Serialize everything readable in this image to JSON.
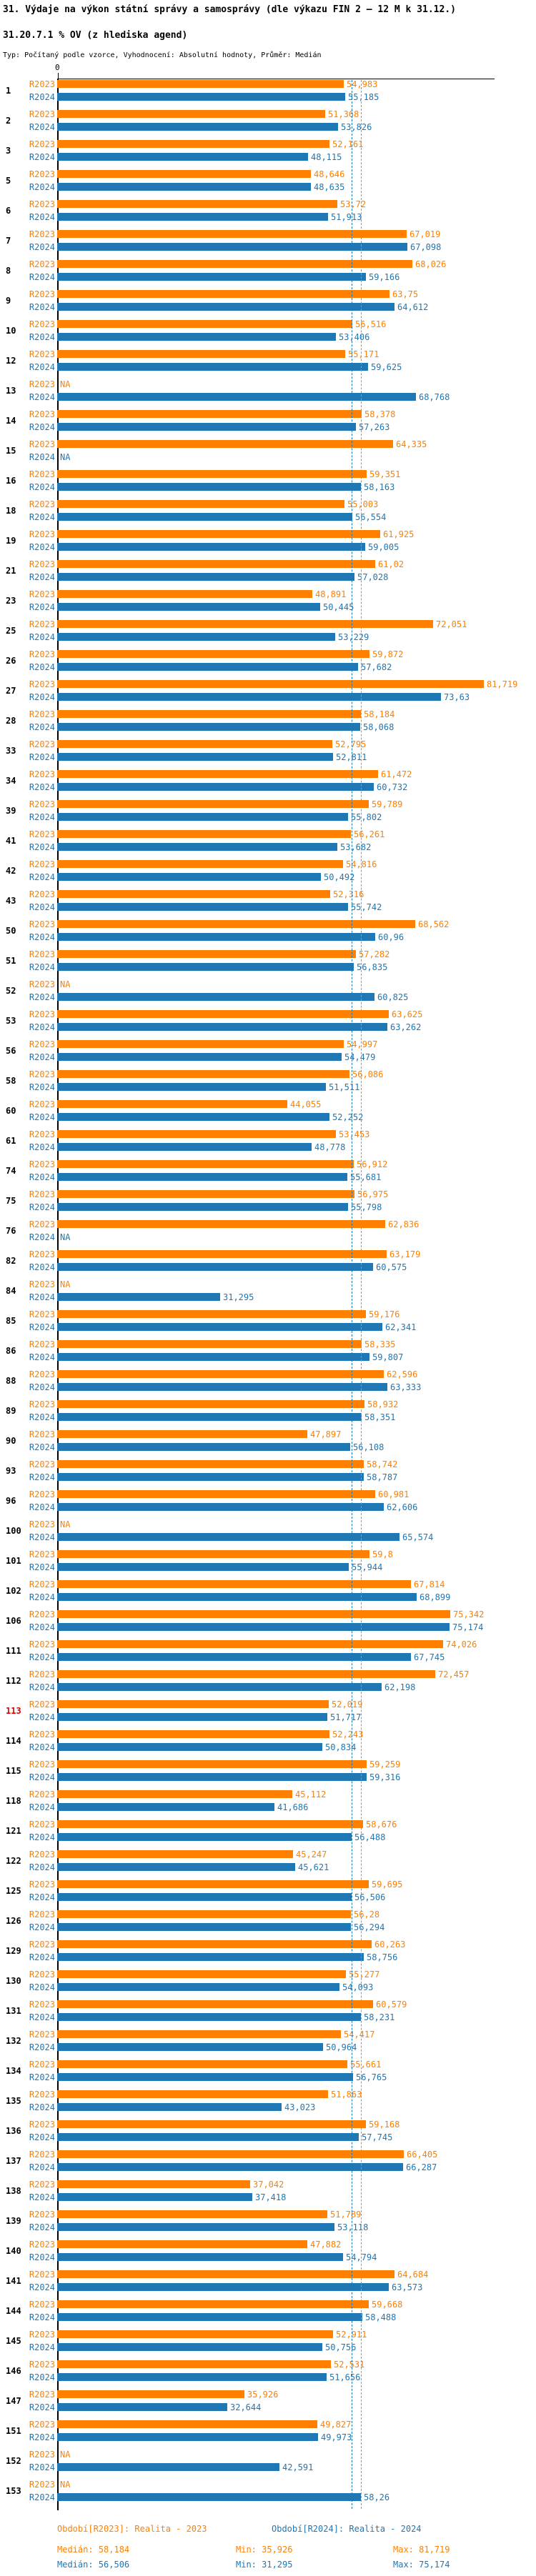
{
  "title": "31. Výdaje na výkon státní správy a samosprávy (dle výkazu FIN 2 – 12 M k 31.12.)",
  "subtitle": "31.20.7.1 % OV (z hlediska agend)",
  "meta_line": "Typ: Počítaný podle vzorce, Vyhodnocení: Absolutní hodnoty, Průměr: Medián",
  "colors": {
    "series_2023": "#ff8000",
    "series_2024": "#1f77b4",
    "highlight_row_number": "#e00000",
    "axis": "#000000",
    "background": "#ffffff"
  },
  "legend": {
    "r2023_label": "Období[R2023]: Realita - 2023",
    "r2024_label": "Období[R2024]: Realita - 2024",
    "r2023_median": "Medián: 58,184",
    "r2023_min": "Min: 35,926",
    "r2023_max": "Max: 81,719",
    "r2024_median": "Medián: 56,506",
    "r2024_min": "Min: 31,295",
    "r2024_max": "Max: 75,174"
  },
  "chart_data": {
    "type": "bar",
    "orientation": "horizontal",
    "grid": false,
    "axis": {
      "origin_label": "0",
      "x_min": 0,
      "x_max_implied": 83
    },
    "series_labels": {
      "r2023": "R2023",
      "r2024": "R2024"
    },
    "na_label": "NA",
    "highlighted_row": "113",
    "reference_lines": [
      {
        "series": "R2024",
        "value": 56.506,
        "style": "dashed",
        "color": "#1f77b4"
      },
      {
        "series": "R2023",
        "value": 58.184,
        "style": "dashed",
        "color": "#ff8000"
      }
    ],
    "rows": [
      {
        "n": "1",
        "r2023": "54,983",
        "r2024": "55,185"
      },
      {
        "n": "2",
        "r2023": "51,368",
        "r2024": "53,826"
      },
      {
        "n": "3",
        "r2023": "52,161",
        "r2024": "48,115"
      },
      {
        "n": "5",
        "r2023": "48,646",
        "r2024": "48,635"
      },
      {
        "n": "6",
        "r2023": "53,72",
        "r2024": "51,913"
      },
      {
        "n": "7",
        "r2023": "67,019",
        "r2024": "67,098"
      },
      {
        "n": "8",
        "r2023": "68,026",
        "r2024": "59,166"
      },
      {
        "n": "9",
        "r2023": "63,75",
        "r2024": "64,612"
      },
      {
        "n": "10",
        "r2023": "56,516",
        "r2024": "53,406"
      },
      {
        "n": "12",
        "r2023": "55,171",
        "r2024": "59,625"
      },
      {
        "n": "13",
        "r2023": "NA",
        "r2024": "68,768"
      },
      {
        "n": "14",
        "r2023": "58,378",
        "r2024": "57,263"
      },
      {
        "n": "15",
        "r2023": "64,335",
        "r2024": "NA"
      },
      {
        "n": "16",
        "r2023": "59,351",
        "r2024": "58,163"
      },
      {
        "n": "18",
        "r2023": "55,003",
        "r2024": "56,554"
      },
      {
        "n": "19",
        "r2023": "61,925",
        "r2024": "59,005"
      },
      {
        "n": "21",
        "r2023": "61,02",
        "r2024": "57,028"
      },
      {
        "n": "23",
        "r2023": "48,891",
        "r2024": "50,445"
      },
      {
        "n": "25",
        "r2023": "72,051",
        "r2024": "53,229"
      },
      {
        "n": "26",
        "r2023": "59,872",
        "r2024": "57,682"
      },
      {
        "n": "27",
        "r2023": "81,719",
        "r2024": "73,63"
      },
      {
        "n": "28",
        "r2023": "58,184",
        "r2024": "58,068"
      },
      {
        "n": "33",
        "r2023": "52,795",
        "r2024": "52,811"
      },
      {
        "n": "34",
        "r2023": "61,472",
        "r2024": "60,732"
      },
      {
        "n": "39",
        "r2023": "59,789",
        "r2024": "55,802"
      },
      {
        "n": "41",
        "r2023": "56,261",
        "r2024": "53,682"
      },
      {
        "n": "42",
        "r2023": "54,816",
        "r2024": "50,492"
      },
      {
        "n": "43",
        "r2023": "52,316",
        "r2024": "55,742"
      },
      {
        "n": "50",
        "r2023": "68,562",
        "r2024": "60,96"
      },
      {
        "n": "51",
        "r2023": "57,282",
        "r2024": "56,835"
      },
      {
        "n": "52",
        "r2023": "NA",
        "r2024": "60,825"
      },
      {
        "n": "53",
        "r2023": "63,625",
        "r2024": "63,262"
      },
      {
        "n": "56",
        "r2023": "54,997",
        "r2024": "54,479"
      },
      {
        "n": "58",
        "r2023": "56,086",
        "r2024": "51,511"
      },
      {
        "n": "60",
        "r2023": "44,055",
        "r2024": "52,252"
      },
      {
        "n": "61",
        "r2023": "53,453",
        "r2024": "48,778"
      },
      {
        "n": "74",
        "r2023": "56,912",
        "r2024": "55,681"
      },
      {
        "n": "75",
        "r2023": "56,975",
        "r2024": "55,798"
      },
      {
        "n": "76",
        "r2023": "62,836",
        "r2024": "NA"
      },
      {
        "n": "82",
        "r2023": "63,179",
        "r2024": "60,575"
      },
      {
        "n": "84",
        "r2023": "NA",
        "r2024": "31,295"
      },
      {
        "n": "85",
        "r2023": "59,176",
        "r2024": "62,341"
      },
      {
        "n": "86",
        "r2023": "58,335",
        "r2024": "59,807"
      },
      {
        "n": "88",
        "r2023": "62,596",
        "r2024": "63,333"
      },
      {
        "n": "89",
        "r2023": "58,932",
        "r2024": "58,351"
      },
      {
        "n": "90",
        "r2023": "47,897",
        "r2024": "56,108"
      },
      {
        "n": "93",
        "r2023": "58,742",
        "r2024": "58,787"
      },
      {
        "n": "96",
        "r2023": "60,981",
        "r2024": "62,606"
      },
      {
        "n": "100",
        "r2023": "NA",
        "r2024": "65,574"
      },
      {
        "n": "101",
        "r2023": "59,8",
        "r2024": "55,944"
      },
      {
        "n": "102",
        "r2023": "67,814",
        "r2024": "68,899"
      },
      {
        "n": "106",
        "r2023": "75,342",
        "r2024": "75,174"
      },
      {
        "n": "111",
        "r2023": "74,026",
        "r2024": "67,745"
      },
      {
        "n": "112",
        "r2023": "72,457",
        "r2024": "62,198"
      },
      {
        "n": "113",
        "r2023": "52,019",
        "r2024": "51,717"
      },
      {
        "n": "114",
        "r2023": "52,243",
        "r2024": "50,834"
      },
      {
        "n": "115",
        "r2023": "59,259",
        "r2024": "59,316"
      },
      {
        "n": "118",
        "r2023": "45,112",
        "r2024": "41,686"
      },
      {
        "n": "121",
        "r2023": "58,676",
        "r2024": "56,488"
      },
      {
        "n": "122",
        "r2023": "45,247",
        "r2024": "45,621"
      },
      {
        "n": "125",
        "r2023": "59,695",
        "r2024": "56,506"
      },
      {
        "n": "126",
        "r2023": "56,28",
        "r2024": "56,294"
      },
      {
        "n": "129",
        "r2023": "60,263",
        "r2024": "58,756"
      },
      {
        "n": "130",
        "r2023": "55,277",
        "r2024": "54,093"
      },
      {
        "n": "131",
        "r2023": "60,579",
        "r2024": "58,231"
      },
      {
        "n": "132",
        "r2023": "54,417",
        "r2024": "50,964"
      },
      {
        "n": "134",
        "r2023": "55,661",
        "r2024": "56,765"
      },
      {
        "n": "135",
        "r2023": "51,863",
        "r2024": "43,023"
      },
      {
        "n": "136",
        "r2023": "59,168",
        "r2024": "57,745"
      },
      {
        "n": "137",
        "r2023": "66,405",
        "r2024": "66,287"
      },
      {
        "n": "138",
        "r2023": "37,042",
        "r2024": "37,418"
      },
      {
        "n": "139",
        "r2023": "51,789",
        "r2024": "53,118"
      },
      {
        "n": "140",
        "r2023": "47,882",
        "r2024": "54,794"
      },
      {
        "n": "141",
        "r2023": "64,684",
        "r2024": "63,573"
      },
      {
        "n": "144",
        "r2023": "59,668",
        "r2024": "58,488"
      },
      {
        "n": "145",
        "r2023": "52,911",
        "r2024": "50,756"
      },
      {
        "n": "146",
        "r2023": "52,531",
        "r2024": "51,656"
      },
      {
        "n": "147",
        "r2023": "35,926",
        "r2024": "32,644"
      },
      {
        "n": "151",
        "r2023": "49,827",
        "r2024": "49,973"
      },
      {
        "n": "152",
        "r2023": "NA",
        "r2024": "42,591"
      },
      {
        "n": "153",
        "r2023": "NA",
        "r2024": "58,26"
      }
    ]
  }
}
